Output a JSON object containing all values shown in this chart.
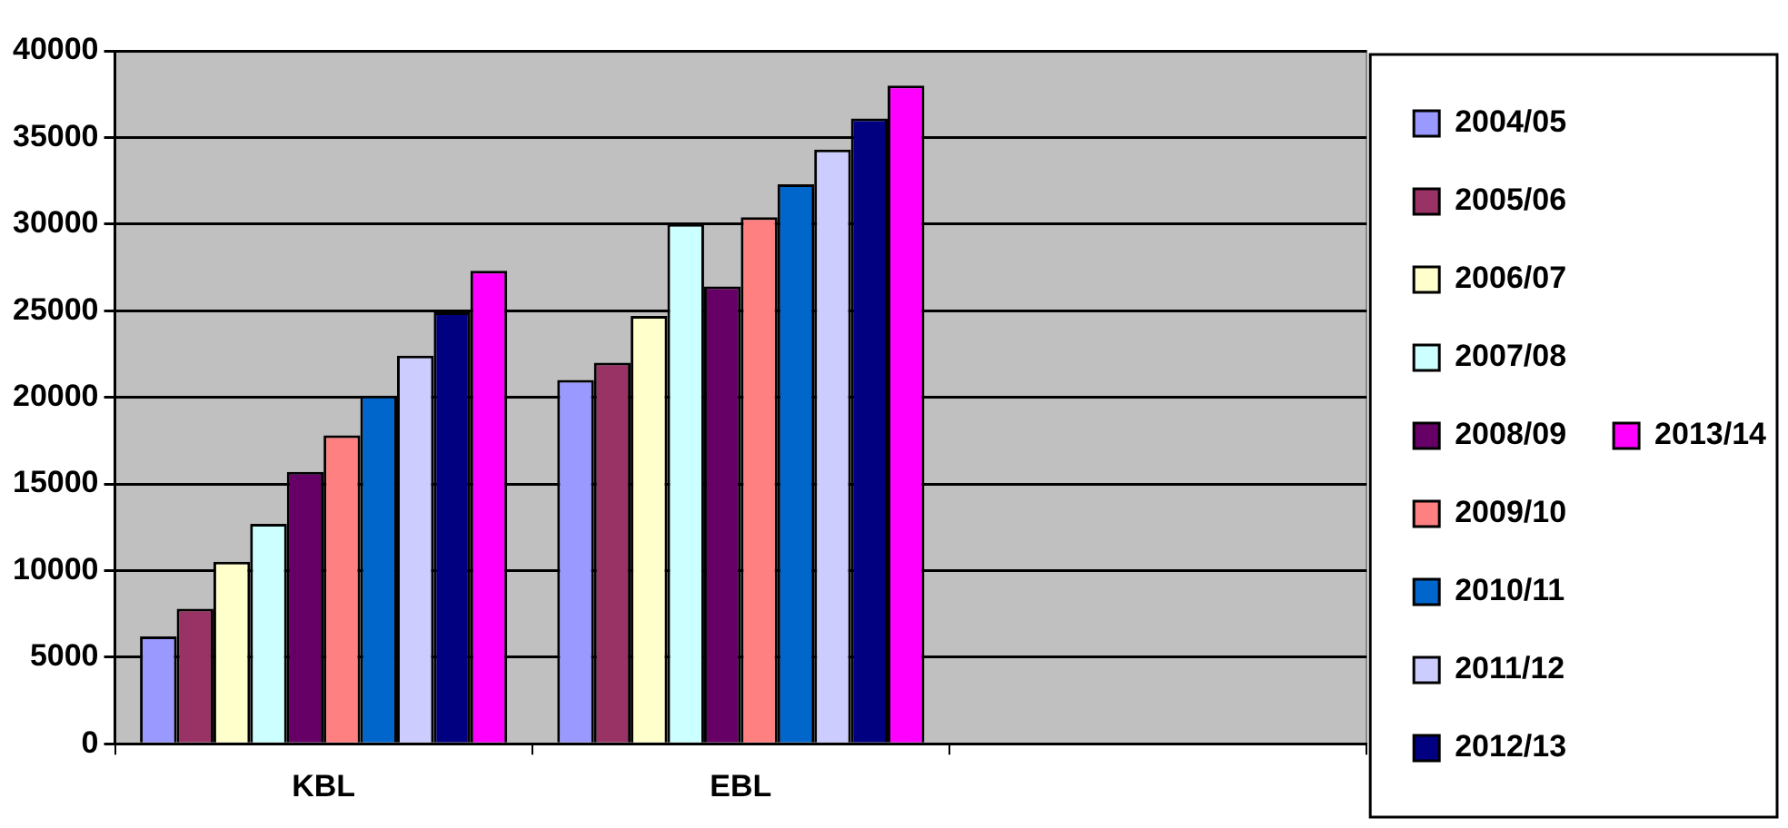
{
  "chart_data": {
    "type": "bar",
    "categories": [
      "KBL",
      "EBL",
      null
    ],
    "series": [
      {
        "name": "2004/05",
        "color": "#9999ff",
        "values": [
          6200,
          21000,
          null
        ]
      },
      {
        "name": "2005/06",
        "color": "#993366",
        "values": [
          7800,
          22000,
          null
        ]
      },
      {
        "name": "2006/07",
        "color": "#ffffcc",
        "values": [
          10500,
          24700,
          null
        ]
      },
      {
        "name": "2007/08",
        "color": "#ccffff",
        "values": [
          12700,
          30000,
          null
        ]
      },
      {
        "name": "2008/09",
        "color": "#660066",
        "values": [
          15700,
          26400,
          null
        ]
      },
      {
        "name": "2009/10",
        "color": "#ff8080",
        "values": [
          17800,
          30400,
          null
        ]
      },
      {
        "name": "2010/11",
        "color": "#0066cc",
        "values": [
          20100,
          32300,
          null
        ]
      },
      {
        "name": "2011/12",
        "color": "#ccccff",
        "values": [
          22400,
          34300,
          null
        ]
      },
      {
        "name": "2012/13",
        "color": "#000080",
        "values": [
          24900,
          36100,
          null
        ]
      },
      {
        "name": "2013/14",
        "color": "#ff00ff",
        "values": [
          27300,
          38000,
          null
        ]
      }
    ],
    "ylim": [
      0,
      40000
    ],
    "yticks": [
      0,
      5000,
      10000,
      15000,
      20000,
      25000,
      30000,
      35000,
      40000
    ],
    "grid": "y",
    "legend": "right"
  }
}
